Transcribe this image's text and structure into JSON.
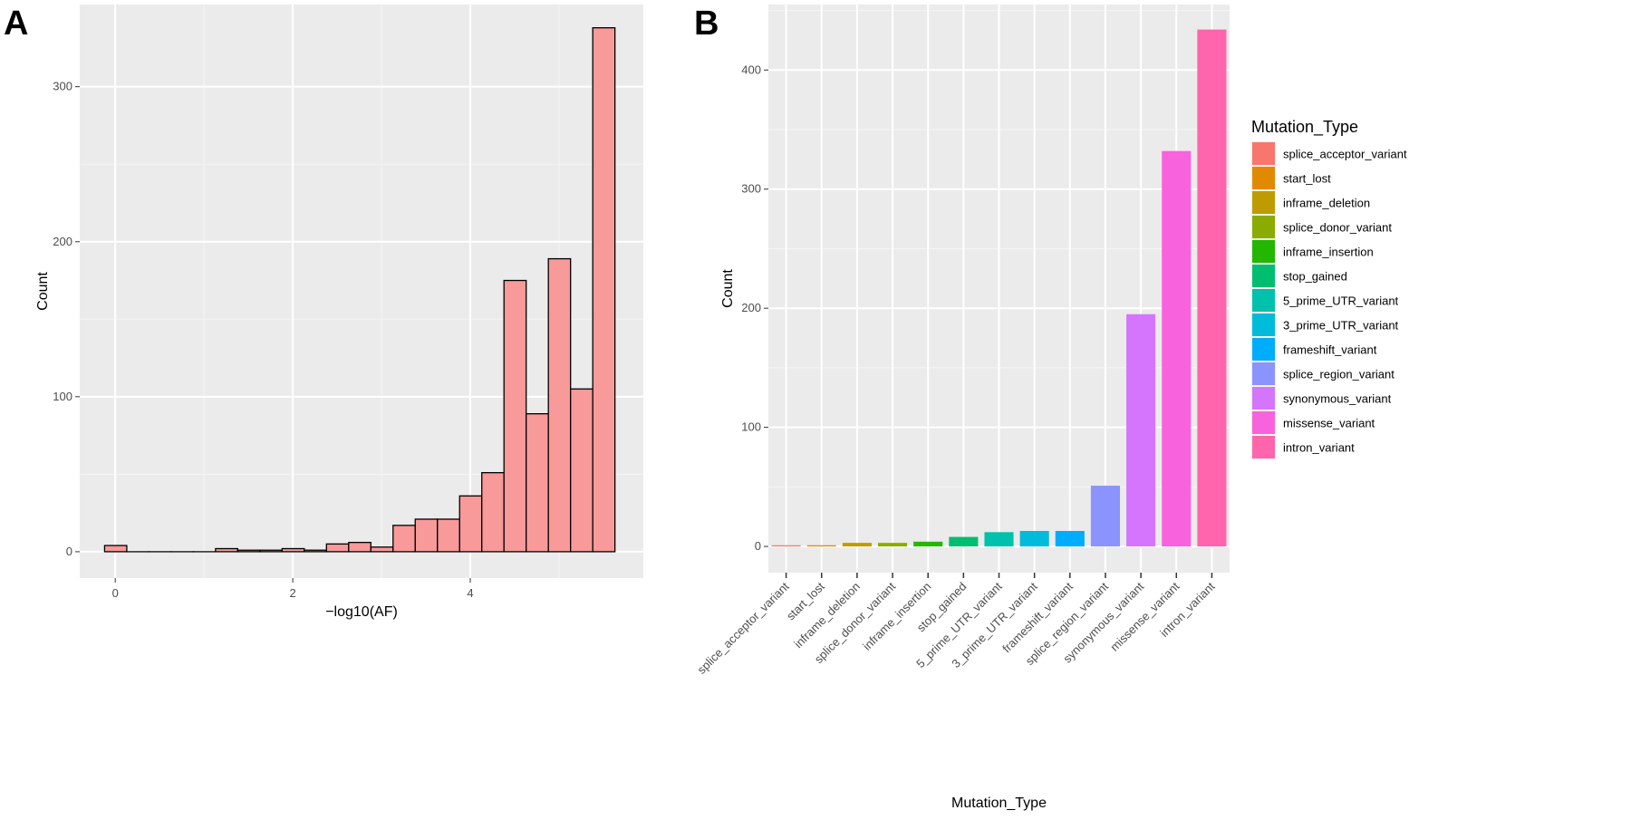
{
  "figure": {
    "panel_a_label": "A",
    "panel_b_label": "B"
  },
  "chart_data": [
    {
      "type": "bar",
      "subtype": "histogram",
      "title": "",
      "xlabel": "−log10(AF)",
      "ylabel": "Count",
      "bar_fill": "#F8999A",
      "bar_stroke": "#000000",
      "panel_bg": "#EBEBEB",
      "grid": true,
      "xlim": [
        -0.4,
        5.95
      ],
      "ylim": [
        -17,
        353
      ],
      "x_ticks": [
        0,
        2,
        4
      ],
      "x_tick_labels": [
        "0",
        "2",
        "4"
      ],
      "y_ticks": [
        0,
        100,
        200,
        300
      ],
      "y_tick_labels": [
        "0",
        "100",
        "200",
        "300"
      ],
      "bin_width": 0.25,
      "bins": [
        {
          "x0": -0.12,
          "x1": 0.13,
          "count": 4
        },
        {
          "x0": 0.13,
          "x1": 0.38,
          "count": 0
        },
        {
          "x0": 0.38,
          "x1": 0.63,
          "count": 0
        },
        {
          "x0": 0.63,
          "x1": 0.88,
          "count": 0
        },
        {
          "x0": 0.88,
          "x1": 1.13,
          "count": 0
        },
        {
          "x0": 1.13,
          "x1": 1.38,
          "count": 2
        },
        {
          "x0": 1.38,
          "x1": 1.63,
          "count": 1
        },
        {
          "x0": 1.63,
          "x1": 1.88,
          "count": 1
        },
        {
          "x0": 1.88,
          "x1": 2.13,
          "count": 2
        },
        {
          "x0": 2.13,
          "x1": 2.38,
          "count": 1
        },
        {
          "x0": 2.38,
          "x1": 2.63,
          "count": 5
        },
        {
          "x0": 2.63,
          "x1": 2.88,
          "count": 6
        },
        {
          "x0": 2.88,
          "x1": 3.13,
          "count": 3
        },
        {
          "x0": 3.13,
          "x1": 3.38,
          "count": 17
        },
        {
          "x0": 3.38,
          "x1": 3.63,
          "count": 21
        },
        {
          "x0": 3.63,
          "x1": 3.88,
          "count": 21
        },
        {
          "x0": 3.88,
          "x1": 4.13,
          "count": 36
        },
        {
          "x0": 4.13,
          "x1": 4.38,
          "count": 51
        },
        {
          "x0": 4.38,
          "x1": 4.63,
          "count": 175
        },
        {
          "x0": 4.63,
          "x1": 4.88,
          "count": 89
        },
        {
          "x0": 4.88,
          "x1": 5.13,
          "count": 189
        },
        {
          "x0": 5.13,
          "x1": 5.38,
          "count": 105
        },
        {
          "x0": 5.38,
          "x1": 5.63,
          "count": 338
        }
      ]
    },
    {
      "type": "bar",
      "title": "",
      "xlabel": "Mutation_Type",
      "ylabel": "Count",
      "panel_bg": "#EBEBEB",
      "grid": true,
      "ylim": [
        -22,
        455
      ],
      "y_ticks": [
        0,
        100,
        200,
        300,
        400
      ],
      "y_tick_labels": [
        "0",
        "100",
        "200",
        "300",
        "400"
      ],
      "legend_title": "Mutation_Type",
      "legend_position": "right",
      "categories": [
        "splice_acceptor_variant",
        "start_lost",
        "inframe_deletion",
        "splice_donor_variant",
        "inframe_insertion",
        "stop_gained",
        "5_prime_UTR_variant",
        "3_prime_UTR_variant",
        "frameshift_variant",
        "splice_region_variant",
        "synonymous_variant",
        "missense_variant",
        "intron_variant"
      ],
      "values": [
        1,
        1,
        3,
        3,
        4,
        8,
        12,
        13,
        13,
        51,
        195,
        332,
        434
      ],
      "colors": [
        "#F8766D",
        "#E18A00",
        "#BE9C00",
        "#8CAB00",
        "#24B700",
        "#00BE70",
        "#00C1AB",
        "#00BBDA",
        "#00ACFC",
        "#8B93FF",
        "#D575FE",
        "#F962DD",
        "#FF65AC"
      ]
    }
  ]
}
